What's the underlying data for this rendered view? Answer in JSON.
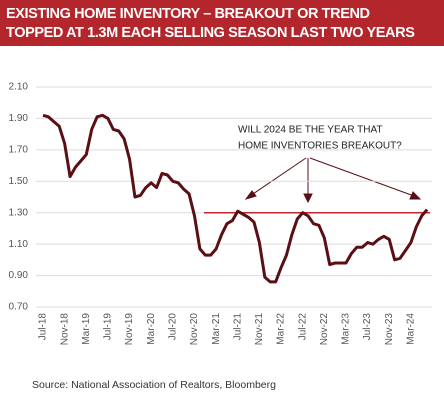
{
  "chart_data": {
    "type": "line",
    "title_lines": [
      "EXISTING HOME INVENTORY – BREAKOUT OR TREND",
      "TOPPED AT 1.3M EACH SELLING SEASON LAST TWO YEARS"
    ],
    "annotation_lines": [
      "WILL 2024 BE THE YEAR THAT",
      "HOME INVENTORIES BREAKOUT?"
    ],
    "source": "Source: National Association of Realtors, Bloomberg",
    "categories": [
      "Jul-18",
      null,
      null,
      null,
      "Nov-18",
      null,
      null,
      null,
      "Mar-19",
      null,
      null,
      null,
      "Jul-19",
      null,
      null,
      null,
      "Nov-19",
      null,
      null,
      null,
      "Mar-20",
      null,
      null,
      null,
      "Jul-20",
      null,
      null,
      null,
      "Nov-20",
      null,
      null,
      null,
      "Mar-21",
      null,
      null,
      null,
      "Jul-21",
      null,
      null,
      null,
      "Nov-21",
      null,
      null,
      null,
      "Mar-22",
      null,
      null,
      null,
      "Jul-22",
      null,
      null,
      null,
      "Nov-22",
      null,
      null,
      null,
      "Mar-23",
      null,
      null,
      null,
      "Jul-23",
      null,
      null,
      null,
      "Nov-23",
      null,
      null,
      null,
      "Mar-24",
      null,
      null,
      null
    ],
    "series": [
      {
        "color": "#5a0f14",
        "values": [
          1.92,
          1.91,
          1.88,
          1.85,
          1.74,
          1.53,
          1.59,
          1.63,
          1.67,
          1.83,
          1.91,
          1.92,
          1.9,
          1.83,
          1.82,
          1.77,
          1.64,
          1.4,
          1.41,
          1.46,
          1.49,
          1.46,
          1.55,
          1.54,
          1.5,
          1.49,
          1.45,
          1.42,
          1.28,
          1.07,
          1.03,
          1.03,
          1.07,
          1.16,
          1.23,
          1.25,
          1.31,
          1.29,
          1.27,
          1.24,
          1.11,
          0.89,
          0.86,
          0.86,
          0.95,
          1.03,
          1.16,
          1.26,
          1.3,
          1.28,
          1.23,
          1.22,
          1.14,
          0.97,
          0.98,
          0.98,
          0.98,
          1.04,
          1.08,
          1.08,
          1.11,
          1.1,
          1.13,
          1.15,
          1.13,
          1.0,
          1.01,
          1.06,
          1.11,
          1.21,
          1.28,
          1.32
        ]
      }
    ],
    "reference_line": {
      "value": 1.3,
      "color": "#c0272d"
    },
    "ylim": [
      0.7,
      2.1
    ],
    "yticks": [
      {
        "value": 0.7,
        "label": "0.70"
      },
      {
        "value": 0.9,
        "label": "0.90"
      },
      {
        "value": 1.1,
        "label": "1.10"
      },
      {
        "value": 1.3,
        "label": "1.30"
      },
      {
        "value": 1.5,
        "label": "1.50"
      },
      {
        "value": 1.7,
        "label": "1.70"
      },
      {
        "value": 1.9,
        "label": "1.90"
      },
      {
        "value": 2.1,
        "label": "2.10"
      }
    ],
    "grid": true,
    "title_background": "#b3262c"
  }
}
